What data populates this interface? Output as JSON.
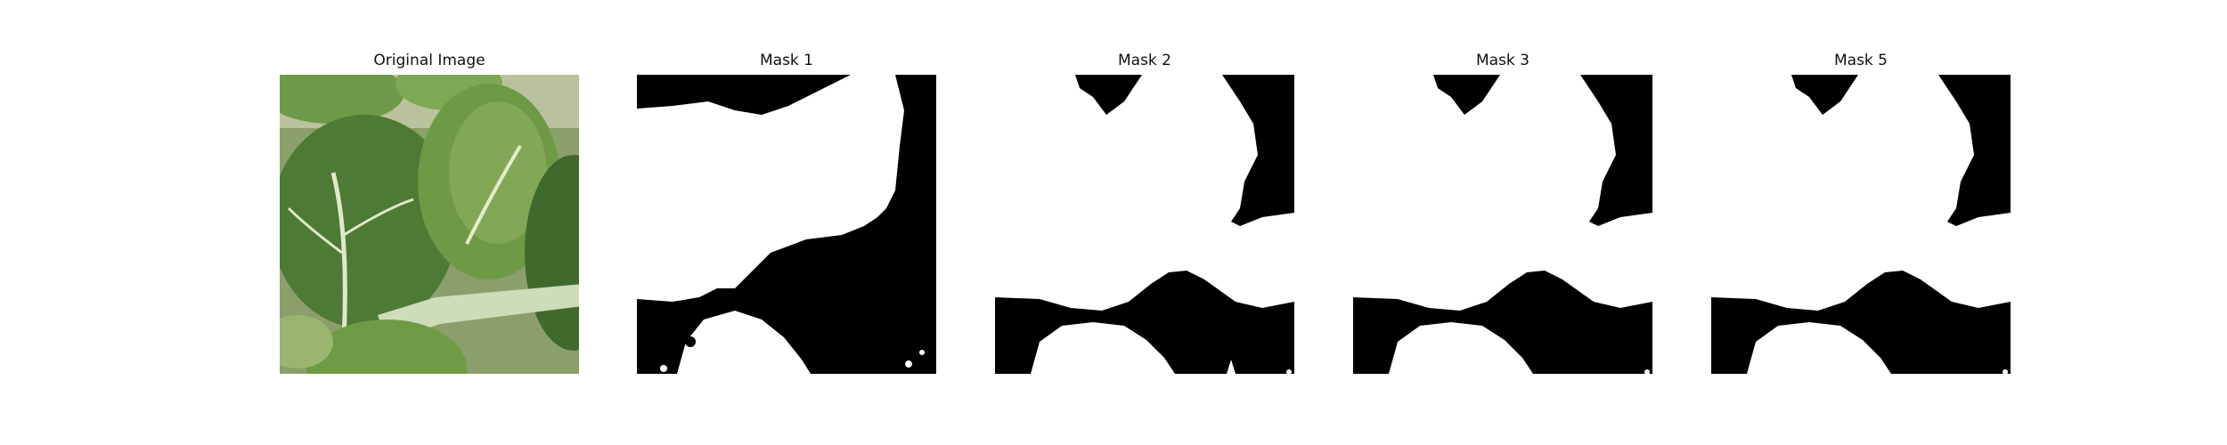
{
  "figure": {
    "panels": [
      {
        "title": "Original Image",
        "kind": "photo",
        "subject": "leafy-green-plant"
      },
      {
        "title": "Mask 1",
        "kind": "binary-mask"
      },
      {
        "title": "Mask 2",
        "kind": "binary-mask"
      },
      {
        "title": "Mask 3",
        "kind": "binary-mask"
      },
      {
        "title": "Mask 5",
        "kind": "binary-mask"
      }
    ],
    "colors": {
      "mask_background": "#000000",
      "mask_foreground": "#ffffff",
      "leaf_dark": "#3f6a2c",
      "leaf_mid": "#5f8f3e",
      "leaf_light": "#8fb062",
      "stem": "#cfdcb8"
    }
  }
}
